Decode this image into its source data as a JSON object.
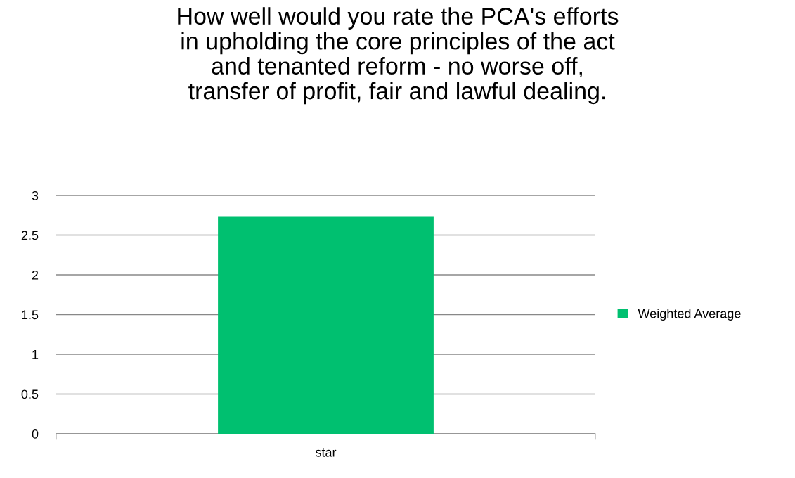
{
  "chart_data": {
    "type": "bar",
    "title": "How well would you rate the PCA's efforts\nin upholding the core principles of the act\nand tenanted reform - no worse off,\ntransfer of profit, fair and lawful dealing.",
    "categories": [
      "star"
    ],
    "series": [
      {
        "name": "Weighted Average",
        "color": "#00c070",
        "values": [
          2.74
        ]
      }
    ],
    "ylim": [
      0,
      3
    ],
    "yticks": [
      0,
      0.5,
      1,
      1.5,
      2,
      2.5,
      3
    ],
    "grid": "y",
    "legend": "right"
  }
}
